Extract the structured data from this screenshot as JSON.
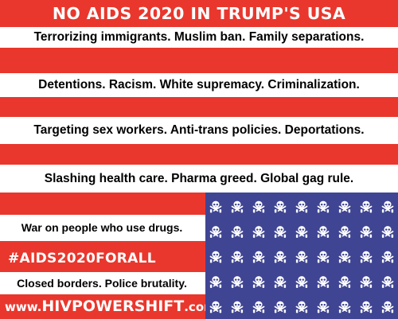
{
  "title": "NO AIDS 2020 IN TRUMP'S USA",
  "lines": [
    "Terrorizing immigrants. Muslim ban. Family separations.",
    "Detentions. Racism. White supremacy. Criminalization.",
    "Targeting sex workers. Anti-trans policies. Deportations.",
    "Slashing health care. Pharma greed. Global gag rule.",
    "War on people who use drugs.",
    "Closed borders. Police brutality."
  ],
  "hashtag": "#AIDS2020FORALL",
  "url": {
    "prefix": "www.",
    "main": "HIVPOWERSHIFT",
    "suffix": ".com"
  },
  "colors": {
    "red": "#e9372d",
    "white": "#ffffff",
    "blue": "#3f4593",
    "text": "#000000"
  },
  "canton_icon": "skull-and-crossbones-icon",
  "skull_grid": {
    "rows": 5,
    "cols": 9
  }
}
